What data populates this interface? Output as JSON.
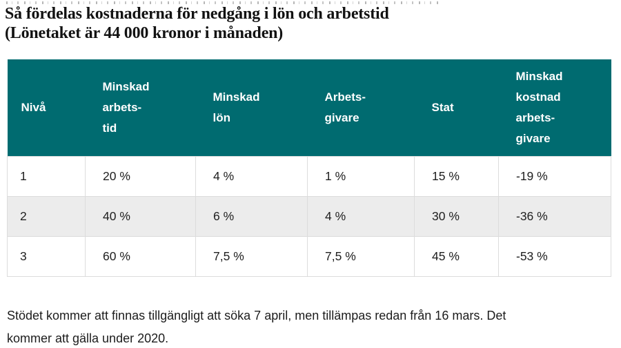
{
  "title": {
    "line1": "Så fördelas kostnaderna för nedgång i lön och arbetstid",
    "line2": "(Lönetaket är 44 000 kronor i månaden)"
  },
  "table": {
    "columns": [
      "Nivå",
      "Minskad\narbets-\ntid",
      "Minskad\nlön",
      "Arbets-\ngivare",
      "Stat",
      "Minskad\nkostnad\narbets-\ngivare"
    ],
    "rows": [
      [
        "1",
        "20 %",
        "4 %",
        "1 %",
        "15 %",
        "-19 %"
      ],
      [
        "2",
        "40 %",
        "6 %",
        "4 %",
        "30 %",
        "-36 %"
      ],
      [
        "3",
        "60 %",
        "7,5 %",
        "7,5 %",
        "45 %",
        "-53 %"
      ]
    ]
  },
  "footnote_lines": [
    "Stödet kommer att finnas tillgängligt att söka 7 april, men tillämpas redan från 16 mars. Det",
    "kommer att gälla under 2020."
  ],
  "colors": {
    "header_bg": "#006b70",
    "header_text": "#ffffff",
    "row_alt_bg": "#ececec",
    "border": "#dcdcdc"
  }
}
